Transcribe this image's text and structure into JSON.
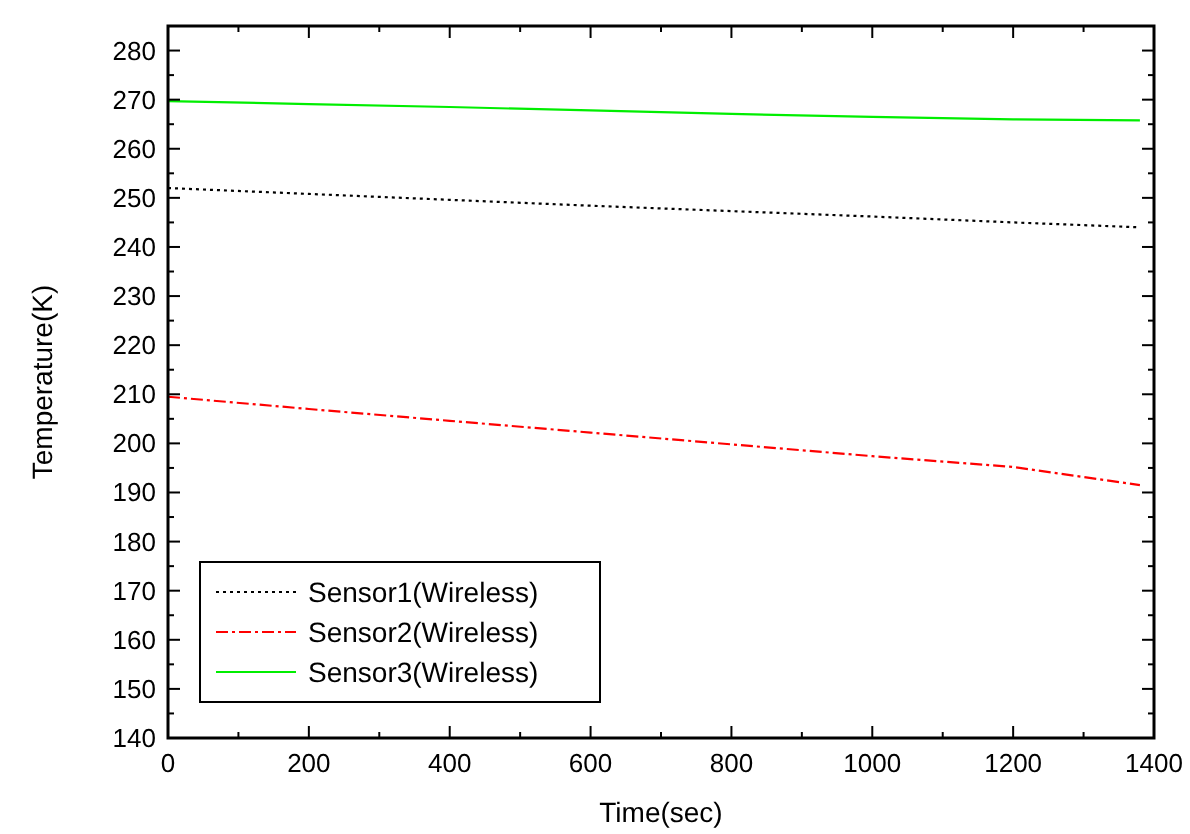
{
  "chart_data": {
    "type": "line",
    "xlabel": "Time(sec)",
    "ylabel": "Temperature(K)",
    "xlim": [
      0,
      1400
    ],
    "ylim": [
      140,
      285
    ],
    "xticks": [
      0,
      {
        "value": 100,
        "label": null
      },
      200,
      {
        "value": 300,
        "label": null
      },
      400,
      {
        "value": 500,
        "label": null
      },
      600,
      {
        "value": 700,
        "label": null
      },
      800,
      {
        "value": 900,
        "label": null
      },
      1000,
      {
        "value": 1100,
        "label": null
      },
      1200,
      {
        "value": 1300,
        "label": null
      },
      1400
    ],
    "yticks": [
      140,
      {
        "value": 145,
        "label": null
      },
      150,
      {
        "value": 155,
        "label": null
      },
      160,
      {
        "value": 165,
        "label": null
      },
      170,
      {
        "value": 175,
        "label": null
      },
      180,
      {
        "value": 185,
        "label": null
      },
      190,
      {
        "value": 195,
        "label": null
      },
      200,
      {
        "value": 205,
        "label": null
      },
      210,
      {
        "value": 215,
        "label": null
      },
      220,
      {
        "value": 225,
        "label": null
      },
      230,
      {
        "value": 235,
        "label": null
      },
      240,
      {
        "value": 245,
        "label": null
      },
      250,
      {
        "value": 255,
        "label": null
      },
      260,
      {
        "value": 265,
        "label": null
      },
      270,
      {
        "value": 275,
        "label": null
      },
      280
    ],
    "x": [
      0,
      200,
      400,
      600,
      800,
      1000,
      1200,
      1380
    ],
    "legend": "bottom left",
    "grid": false,
    "marker": "none",
    "series": [
      {
        "name": "Sensor1(Wireless)",
        "color": "#000000",
        "line_style": "dotted",
        "values": [
          252,
          250.8,
          249.6,
          248.4,
          247.3,
          246.2,
          245,
          244
        ]
      },
      {
        "name": "Sensor2(Wireless)",
        "color": "#ff0000",
        "line_style": "dashed",
        "values": [
          209.5,
          207,
          204.6,
          202.2,
          199.8,
          197.4,
          195.2,
          191.5
        ]
      },
      {
        "name": "Sensor3(Wireless)",
        "color": "#00ee00",
        "line_style": "solid",
        "values": [
          269.7,
          269.1,
          268.5,
          267.8,
          267.1,
          266.5,
          266,
          265.8
        ]
      }
    ]
  }
}
